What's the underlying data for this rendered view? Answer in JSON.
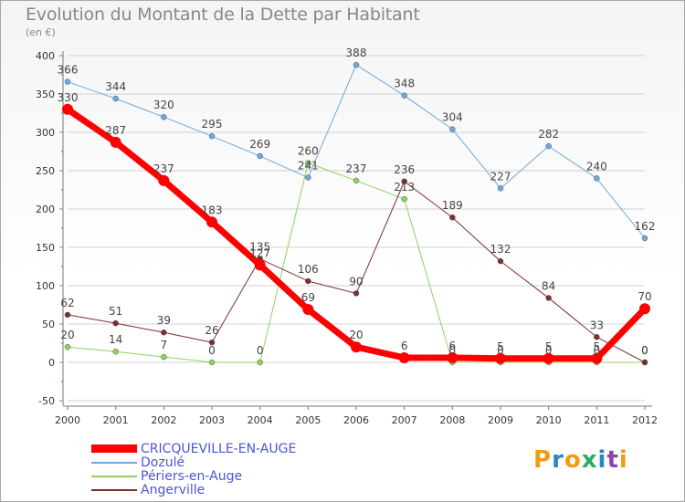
{
  "colors": {
    "s0": "#ff0000",
    "s1": "#6fa8dc",
    "s2": "#8fd35a",
    "s3": "#7a3030",
    "grid": "#d0d0d0"
  },
  "logo": {
    "letters": [
      "P",
      "r",
      "o",
      "x",
      "i",
      "t",
      "i"
    ],
    "colors": [
      "#f39c12",
      "#2e86c1",
      "#f39c12",
      "#27ae60",
      "#2e86c1",
      "#8e44ad",
      "#f39c12"
    ]
  },
  "chart_data": {
    "type": "line",
    "title": "Evolution du Montant de la Dette par Habitant",
    "subtitle": "(en €)",
    "x": [
      "2000",
      "2001",
      "2002",
      "2003",
      "2004",
      "2005",
      "2006",
      "2007",
      "2008",
      "2009",
      "2010",
      "2011",
      "2012"
    ],
    "ylim": [
      -50,
      400
    ],
    "yticks": [
      -50,
      0,
      50,
      100,
      150,
      200,
      250,
      300,
      350,
      400
    ],
    "grid": "horizontal",
    "legend": "bottom-left",
    "series": [
      {
        "name": "CRICQUEVILLE-EN-AUGE",
        "values": [
          330,
          287,
          237,
          183,
          127,
          69,
          20,
          6,
          6,
          5,
          5,
          5,
          70
        ]
      },
      {
        "name": "Dozulé",
        "values": [
          366,
          344,
          320,
          295,
          269,
          241,
          388,
          348,
          304,
          227,
          282,
          240,
          162
        ]
      },
      {
        "name": "Périers-en-Auge",
        "values": [
          20,
          14,
          7,
          0,
          0,
          260,
          237,
          213,
          0,
          0,
          0,
          0,
          0
        ]
      },
      {
        "name": "Angerville",
        "values": [
          62,
          51,
          39,
          26,
          135,
          106,
          90,
          236,
          189,
          132,
          84,
          33,
          0
        ]
      }
    ]
  }
}
